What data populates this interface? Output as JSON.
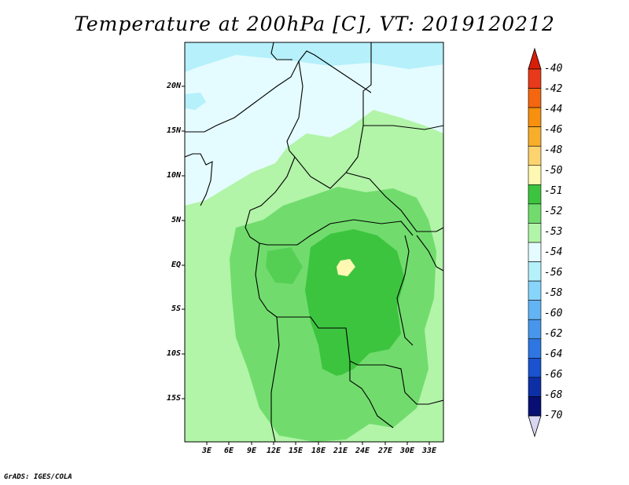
{
  "title": "Temperature at 200hPa [C], VT: 2019120212",
  "credit": "GrADS: IGES/COLA",
  "map": {
    "lat_labels": [
      "20N",
      "15N",
      "10N",
      "5N",
      "EQ",
      "5S",
      "10S",
      "15S"
    ],
    "lon_labels": [
      "3E",
      "6E",
      "9E",
      "12E",
      "15E",
      "18E",
      "21E",
      "24E",
      "27E",
      "30E",
      "33E"
    ]
  },
  "colorbar": {
    "labels": [
      "-40",
      "-42",
      "-44",
      "-46",
      "-48",
      "-50",
      "-51",
      "-52",
      "-53",
      "-54",
      "-56",
      "-58",
      "-60",
      "-62",
      "-64",
      "-66",
      "-68",
      "-70"
    ],
    "colors": [
      "#e8391a",
      "#f46610",
      "#f7900e",
      "#f8ae2a",
      "#fcd36f",
      "#fff8b3",
      "#3dc43f",
      "#71dc6d",
      "#b2f4a8",
      "#e4fcff",
      "#b5f0fb",
      "#88d5fb",
      "#63b4f4",
      "#4896ec",
      "#2e76e2",
      "#1a52d0",
      "#0d2fa6",
      "#070f72"
    ],
    "top_arrow_color": "#d81e08",
    "bottom_arrow_color": "#d9d6f3"
  }
}
